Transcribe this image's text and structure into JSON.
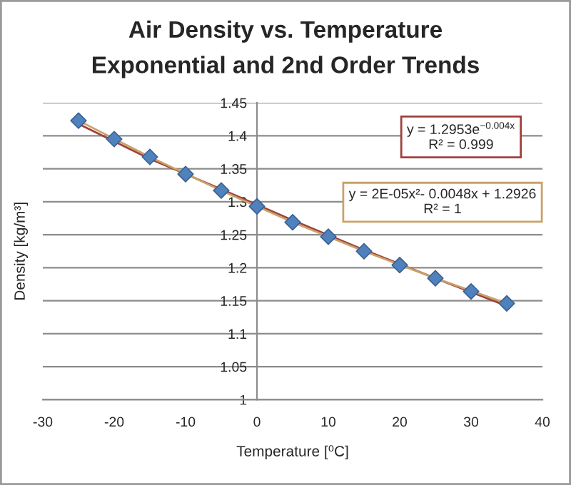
{
  "chart_data": {
    "type": "scatter",
    "title": "Air Density vs. Temperature",
    "subtitle": "Exponential and 2nd Order Trends",
    "xlabel": "Temperature [⁰C]",
    "ylabel": "Density [kg/m³]",
    "xlim": [
      -30,
      40
    ],
    "xticks": [
      -30,
      -20,
      -10,
      0,
      10,
      20,
      30,
      40
    ],
    "ylim": [
      1,
      1.45
    ],
    "yticks": [
      1,
      1.05,
      1.1,
      1.15,
      1.2,
      1.25,
      1.3,
      1.35,
      1.4,
      1.45
    ],
    "grid": "y",
    "marker": "diamond",
    "x": [
      -25,
      -20,
      -15,
      -10,
      -5,
      0,
      5,
      10,
      15,
      20,
      25,
      30,
      35
    ],
    "series": [
      {
        "color": "#4f81bd",
        "values": [
          1.423,
          1.395,
          1.368,
          1.342,
          1.317,
          1.293,
          1.269,
          1.247,
          1.225,
          1.204,
          1.184,
          1.164,
          1.146
        ]
      },
      {
        "type": "line",
        "marker": "none",
        "color": "#a0403c",
        "x": [
          -25,
          -15,
          -5,
          5,
          15,
          25,
          35
        ],
        "values": [
          1.418,
          1.365,
          1.319,
          1.272,
          1.227,
          1.184,
          1.142
        ]
      },
      {
        "type": "line",
        "marker": "none",
        "color": "#c9a26a",
        "x": [
          -25,
          -15,
          -5,
          5,
          15,
          25,
          35
        ],
        "values": [
          1.423,
          1.368,
          1.317,
          1.269,
          1.225,
          1.184,
          1.146
        ]
      }
    ],
    "annotations": [
      "y = 1.2953e$^{−0.004x}$\nR² = 0.999",
      "y = 2E-05x²- 0.0048x + 1.2926\nR² = 1"
    ]
  }
}
